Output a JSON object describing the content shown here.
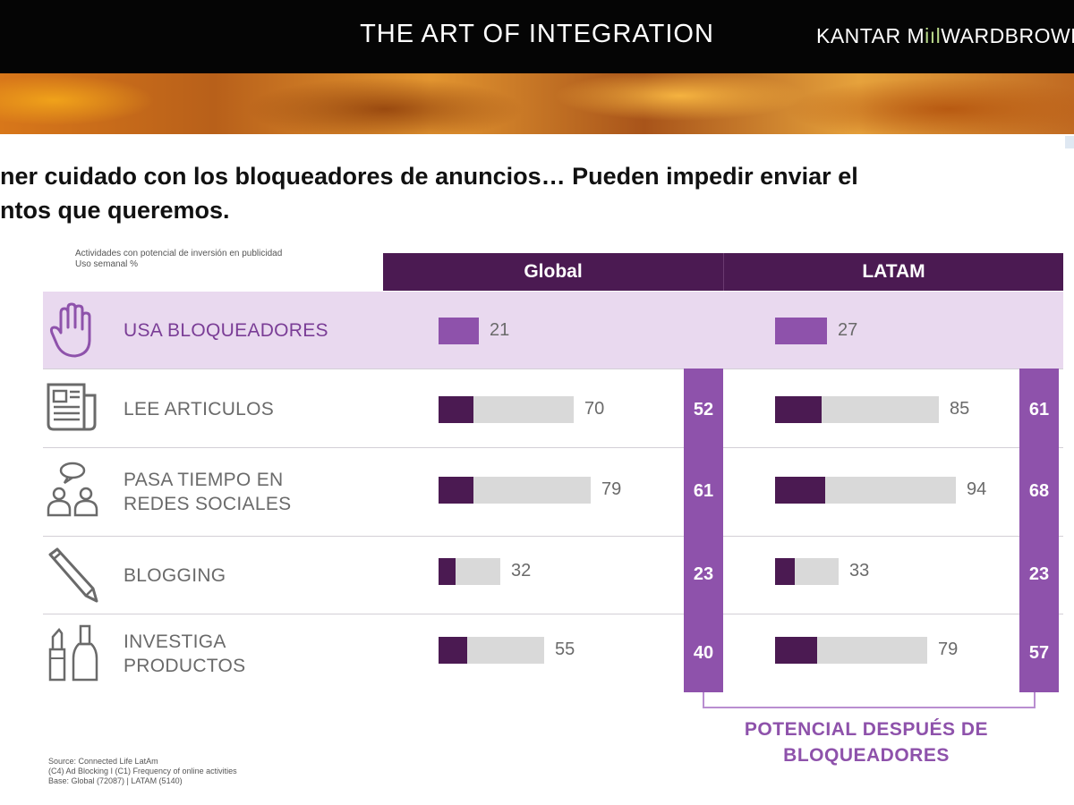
{
  "header": {
    "title": "THE ART OF INTEGRATION",
    "brand_part1": "KANTAR M",
    "brand_part2": "iıl",
    "brand_part3": "WARDBROWN"
  },
  "headline": {
    "line1": "ner cuidado con los bloqueadores de anuncios… Pueden impedir enviar el",
    "line2": "ntos que queremos."
  },
  "note": {
    "line1": "Actividades con potencial de inversión en publicidad",
    "line2": "Uso semanal %"
  },
  "chart_data": {
    "type": "bar",
    "columns": [
      "Global",
      "LATAM"
    ],
    "categories": [
      "USA BLOQUEADORES",
      "LEE ARTICULOS",
      "PASA TIEMPO EN REDES SOCIALES",
      "BLOGGING",
      "INVESTIGA PRODUCTOS"
    ],
    "category_lines": [
      [
        "USA BLOQUEADORES"
      ],
      [
        "LEE ARTICULOS"
      ],
      [
        "PASA TIEMPO EN",
        "REDES SOCIALES"
      ],
      [
        "BLOGGING"
      ],
      [
        "INVESTIGA",
        "PRODUCTOS"
      ]
    ],
    "icons": [
      "hand-icon",
      "newspaper-icon",
      "people-chat-icon",
      "pencil-icon",
      "cosmetics-icon"
    ],
    "series": [
      {
        "name": "Global",
        "values": [
          21,
          70,
          79,
          32,
          55
        ]
      },
      {
        "name": "LATAM",
        "values": [
          27,
          85,
          94,
          33,
          79
        ]
      }
    ],
    "potential": {
      "label_line1": "POTENCIAL DESPUÉS DE",
      "label_line2": "BLOQUEADORES",
      "global": [
        52,
        61,
        23,
        40
      ],
      "latam": [
        61,
        68,
        23,
        57
      ]
    },
    "colors": {
      "header": "#4b1a52",
      "blockers": "#8e52ab",
      "dark_segment": "#4b1a52",
      "track": "#d9d9d9",
      "highlight_row": "#e9d9ef"
    }
  },
  "source": {
    "line1": "Source: Connected Life LatAm",
    "line2": "(C4) Ad Blocking I (C1) Frequency of online activities",
    "line3": "Base: Global (72087) | LATAM (5140)"
  }
}
